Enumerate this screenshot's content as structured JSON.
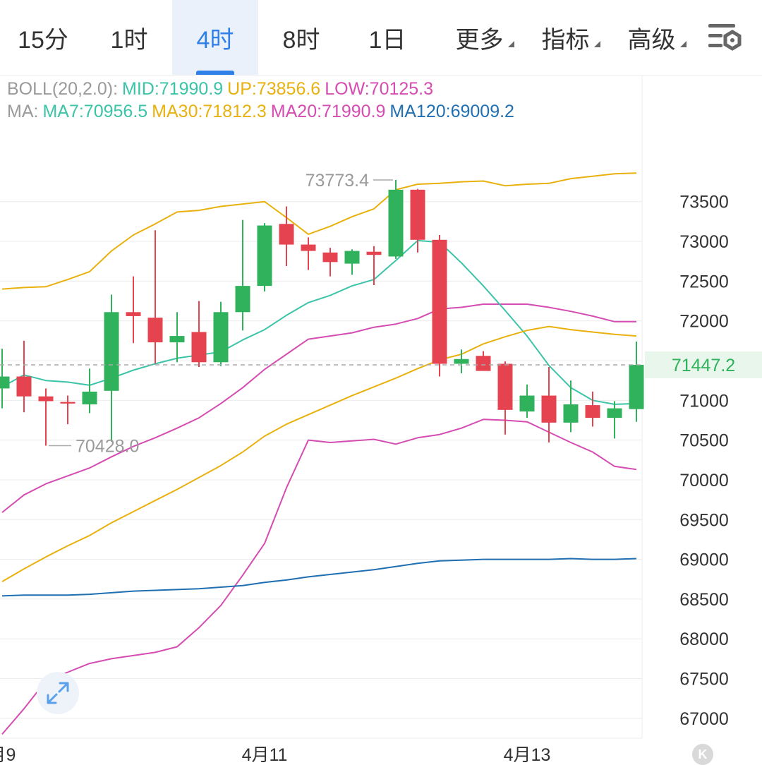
{
  "tabs": [
    {
      "label": "15分",
      "active": false,
      "has_caret": false
    },
    {
      "label": "1时",
      "active": false,
      "has_caret": false
    },
    {
      "label": "4时",
      "active": true,
      "has_caret": false
    },
    {
      "label": "8时",
      "active": false,
      "has_caret": false
    },
    {
      "label": "1日",
      "active": false,
      "has_caret": false
    },
    {
      "label": "更多",
      "active": false,
      "has_caret": true
    },
    {
      "label": "指标",
      "active": false,
      "has_caret": true
    },
    {
      "label": "高级",
      "active": false,
      "has_caret": true
    }
  ],
  "settings_icon": "chart-settings-icon",
  "expand_icon": "expand-icon",
  "k_button_label": "K",
  "legend": {
    "boll": {
      "prefix": "BOLL(20,2.0):",
      "mid": "MID:71990.9",
      "up": "UP:73856.6",
      "low": "LOW:70125.3"
    },
    "ma": {
      "prefix": "MA:",
      "ma7": "MA7:70956.5",
      "ma30": "MA30:71812.3",
      "ma20": "MA20:71990.9",
      "ma120": "MA120:69009.2"
    }
  },
  "colors": {
    "up": "#2fb25b",
    "down": "#e5434f",
    "ma7": "#3bc4a7",
    "ma30": "#e8b10e",
    "ma20": "#d54cb2",
    "ma120": "#1f6fb2",
    "grid": "#ececec",
    "axis_text": "#333333",
    "legend_prefix": "#9a9a9a",
    "accent": "#2f80e8"
  },
  "chart_data": {
    "type": "candlestick",
    "interval": "4时",
    "y_ticks": [
      73500,
      73000,
      72500,
      72000,
      71500,
      71000,
      70500,
      70000,
      69500,
      69000,
      68500,
      68000,
      67500,
      67000
    ],
    "ylim": [
      66750,
      74350
    ],
    "x_labels": [
      {
        "label": "月9",
        "index": 0
      },
      {
        "label": "4月11",
        "index": 12
      },
      {
        "label": "4月13",
        "index": 24
      }
    ],
    "current_price": 71447.2,
    "max_label": {
      "value": "73773.4",
      "index": 18
    },
    "min_label": {
      "value": "70428.0",
      "index": 2
    },
    "candles": [
      {
        "o": 71150,
        "h": 71650,
        "l": 70900,
        "c": 71300
      },
      {
        "o": 71300,
        "h": 71750,
        "l": 70850,
        "c": 71050
      },
      {
        "o": 71050,
        "h": 71150,
        "l": 70430,
        "c": 70990
      },
      {
        "o": 70980,
        "h": 71060,
        "l": 70700,
        "c": 70960
      },
      {
        "o": 70950,
        "h": 71400,
        "l": 70840,
        "c": 71110
      },
      {
        "o": 71120,
        "h": 72330,
        "l": 70480,
        "c": 72110
      },
      {
        "o": 72110,
        "h": 72560,
        "l": 71720,
        "c": 72060
      },
      {
        "o": 72040,
        "h": 73140,
        "l": 71460,
        "c": 71730
      },
      {
        "o": 71730,
        "h": 72110,
        "l": 71480,
        "c": 71810
      },
      {
        "o": 71860,
        "h": 72250,
        "l": 71420,
        "c": 71480
      },
      {
        "o": 71480,
        "h": 72240,
        "l": 71430,
        "c": 72110
      },
      {
        "o": 72110,
        "h": 73270,
        "l": 71880,
        "c": 72440
      },
      {
        "o": 72440,
        "h": 73230,
        "l": 72370,
        "c": 73200
      },
      {
        "o": 73220,
        "h": 73440,
        "l": 72690,
        "c": 72960
      },
      {
        "o": 72960,
        "h": 73050,
        "l": 72640,
        "c": 72880
      },
      {
        "o": 72860,
        "h": 72920,
        "l": 72560,
        "c": 72740
      },
      {
        "o": 72720,
        "h": 72900,
        "l": 72580,
        "c": 72880
      },
      {
        "o": 72870,
        "h": 72940,
        "l": 72450,
        "c": 72830
      },
      {
        "o": 72810,
        "h": 73773.4,
        "l": 72780,
        "c": 73650
      },
      {
        "o": 73650,
        "h": 73660,
        "l": 72860,
        "c": 73020
      },
      {
        "o": 73020,
        "h": 73080,
        "l": 71300,
        "c": 71460
      },
      {
        "o": 71460,
        "h": 71640,
        "l": 71340,
        "c": 71520
      },
      {
        "o": 71560,
        "h": 71620,
        "l": 71380,
        "c": 71370
      },
      {
        "o": 71460,
        "h": 71490,
        "l": 70570,
        "c": 70880
      },
      {
        "o": 70860,
        "h": 71200,
        "l": 70780,
        "c": 71060
      },
      {
        "o": 71060,
        "h": 71420,
        "l": 70470,
        "c": 70720
      },
      {
        "o": 70720,
        "h": 71250,
        "l": 70600,
        "c": 70950
      },
      {
        "o": 70940,
        "h": 71110,
        "l": 70670,
        "c": 70780
      },
      {
        "o": 70780,
        "h": 70990,
        "l": 70520,
        "c": 70900
      },
      {
        "o": 70890,
        "h": 71740,
        "l": 70730,
        "c": 71447.2
      }
    ],
    "series": [
      {
        "name": "UP",
        "color_key": "ma30",
        "values": [
          72400,
          72420,
          72430,
          72520,
          72620,
          72880,
          73080,
          73220,
          73370,
          73390,
          73440,
          73470,
          73500,
          73300,
          73090,
          73190,
          73310,
          73410,
          73650,
          73720,
          73730,
          73750,
          73760,
          73700,
          73720,
          73730,
          73790,
          73820,
          73850,
          73860
        ]
      },
      {
        "name": "MID",
        "color_key": "ma20",
        "values": [
          69590,
          69810,
          69950,
          70050,
          70150,
          70290,
          70420,
          70530,
          70650,
          70780,
          70960,
          71160,
          71390,
          71580,
          71770,
          71810,
          71850,
          71920,
          71960,
          72030,
          72150,
          72170,
          72210,
          72210,
          72210,
          72170,
          72120,
          72060,
          71990,
          71990
        ]
      },
      {
        "name": "LOW",
        "color_key": "ma20",
        "values": [
          66800,
          67120,
          67470,
          67580,
          67690,
          67750,
          67790,
          67830,
          67900,
          68140,
          68420,
          68800,
          69200,
          69900,
          70500,
          70470,
          70490,
          70510,
          70450,
          70530,
          70570,
          70650,
          70760,
          70750,
          70730,
          70600,
          70470,
          70350,
          70170,
          70130
        ]
      },
      {
        "name": "MA7",
        "color_key": "ma7",
        "values": [
          71170,
          71320,
          71250,
          71230,
          71190,
          71280,
          71380,
          71460,
          71530,
          71570,
          71610,
          71760,
          71890,
          72070,
          72230,
          72320,
          72440,
          72520,
          72760,
          73010,
          72990,
          72730,
          72440,
          72130,
          71810,
          71440,
          71160,
          71000,
          70950,
          70960
        ]
      },
      {
        "name": "MA30",
        "color_key": "ma30",
        "values": [
          68720,
          68880,
          69030,
          69170,
          69300,
          69460,
          69600,
          69740,
          69880,
          70030,
          70180,
          70350,
          70550,
          70700,
          70820,
          70940,
          71060,
          71170,
          71280,
          71400,
          71510,
          71580,
          71710,
          71800,
          71880,
          71930,
          71890,
          71860,
          71830,
          71810
        ]
      },
      {
        "name": "MA120",
        "color_key": "ma120",
        "values": [
          68540,
          68550,
          68550,
          68550,
          68560,
          68580,
          68600,
          68610,
          68620,
          68630,
          68650,
          68670,
          68710,
          68740,
          68780,
          68810,
          68840,
          68870,
          68910,
          68950,
          68980,
          68990,
          69000,
          69000,
          69000,
          69000,
          69010,
          69000,
          69000,
          69010
        ]
      }
    ]
  }
}
